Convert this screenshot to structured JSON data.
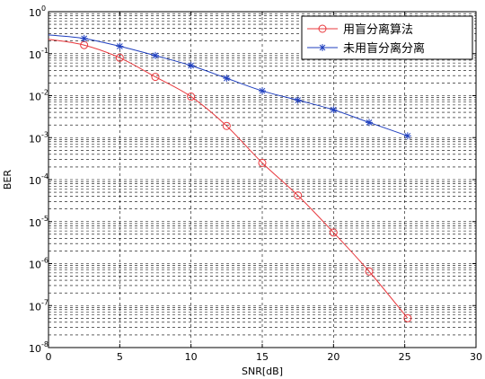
{
  "chart_data": {
    "type": "line",
    "xlabel": "SNR[dB]",
    "ylabel": "BER",
    "xlim": [
      0,
      30
    ],
    "ylim_log10": [
      -8,
      0
    ],
    "y_scale": "log",
    "x_ticks": [
      "0",
      "5",
      "10",
      "15",
      "20",
      "25",
      "30"
    ],
    "y_tick_exponents": [
      "0",
      "-1",
      "-2",
      "-3",
      "-4",
      "-5",
      "-6",
      "-7",
      "-8"
    ],
    "grid": true,
    "legend_position": "top-right",
    "series": [
      {
        "name": "用盲分离算法",
        "color": "#e8383d",
        "marker": "circle",
        "x": [
          0,
          2.5,
          5,
          7.5,
          10,
          12.5,
          15,
          17.5,
          20,
          22.5,
          25.2
        ],
        "y": [
          0.22,
          0.16,
          0.08,
          0.028,
          0.0095,
          0.0019,
          0.00025,
          4.2e-05,
          5.5e-06,
          6.5e-07,
          5e-08
        ]
      },
      {
        "name": "未用盲分离分离",
        "color": "#1f3fbf",
        "marker": "star",
        "x": [
          0,
          2.5,
          5,
          7.5,
          10,
          12.5,
          15,
          17.5,
          20,
          22.5,
          25.2
        ],
        "y": [
          0.28,
          0.23,
          0.15,
          0.09,
          0.052,
          0.026,
          0.013,
          0.0078,
          0.0046,
          0.0023,
          0.0011
        ]
      }
    ]
  }
}
